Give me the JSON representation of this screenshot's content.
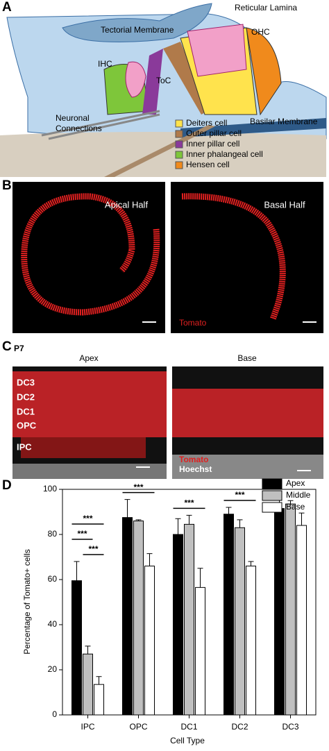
{
  "panels": {
    "a": {
      "letter": "A",
      "tectorial": "Tectorial Membrane",
      "reticular": "Reticular Lamina",
      "ohc": "OHC",
      "ihc": "IHC",
      "toc": "ToC",
      "neuronal": [
        "Neuronal",
        "Connections"
      ],
      "basilar": "Basilar Membrane",
      "legend": [
        {
          "name": "Deiters cell",
          "color": "#ffe34d"
        },
        {
          "name": "Outer pillar cell",
          "color": "#b07a4a"
        },
        {
          "name": "Inner pillar cell",
          "color": "#8a3a9a"
        },
        {
          "name": "Inner phalangeal cell",
          "color": "#7ec63a"
        },
        {
          "name": "Hensen cell",
          "color": "#f08a1c"
        }
      ]
    },
    "b": {
      "letter": "B",
      "left": "Apical Half",
      "right": "Basal Half",
      "stain": "Tomato"
    },
    "c": {
      "letter": "C",
      "age": "P7",
      "left": "Apex",
      "right": "Base",
      "rows": [
        "DC3",
        "DC2",
        "DC1",
        "OPC",
        "IPC"
      ],
      "stains": [
        "Tomato",
        "Hoechst"
      ]
    }
  },
  "chart_data": {
    "type": "bar",
    "letter": "D",
    "xlabel": "Cell Type",
    "ylabel": "Percentage of Tomato+ cells",
    "categories": [
      "IPC",
      "OPC",
      "DC1",
      "DC2",
      "DC3"
    ],
    "series": [
      {
        "name": "Apex",
        "color": "#000000",
        "values": [
          59.5,
          87.5,
          80,
          89,
          91.5
        ],
        "errors": [
          8.5,
          8,
          7,
          3,
          4
        ]
      },
      {
        "name": "Middle",
        "color": "#c0c0c0",
        "values": [
          27,
          86,
          84.5,
          83,
          93.5
        ],
        "errors": [
          3.5,
          0.5,
          4,
          3.5,
          1.5
        ]
      },
      {
        "name": "Base",
        "color": "#ffffff",
        "values": [
          13.5,
          66,
          56.5,
          66,
          84
        ],
        "errors": [
          3.5,
          5.5,
          8.5,
          2,
          5.5
        ]
      }
    ],
    "significance": [
      {
        "label": "***",
        "category": 0,
        "series": [
          0,
          2
        ]
      },
      {
        "label": "***",
        "category": 0,
        "series": [
          0,
          1
        ]
      },
      {
        "label": "***",
        "category": 0,
        "series": [
          1,
          2
        ]
      },
      {
        "label": "***",
        "category": 1,
        "series": [
          0,
          2
        ]
      },
      {
        "label": "***",
        "category": 2,
        "series": [
          0,
          2
        ]
      },
      {
        "label": "***",
        "category": 3,
        "series": [
          0,
          2
        ]
      }
    ],
    "ylim": [
      0,
      100
    ],
    "yticks": [
      0,
      20,
      40,
      60,
      80,
      100
    ],
    "legend": "upper right"
  }
}
